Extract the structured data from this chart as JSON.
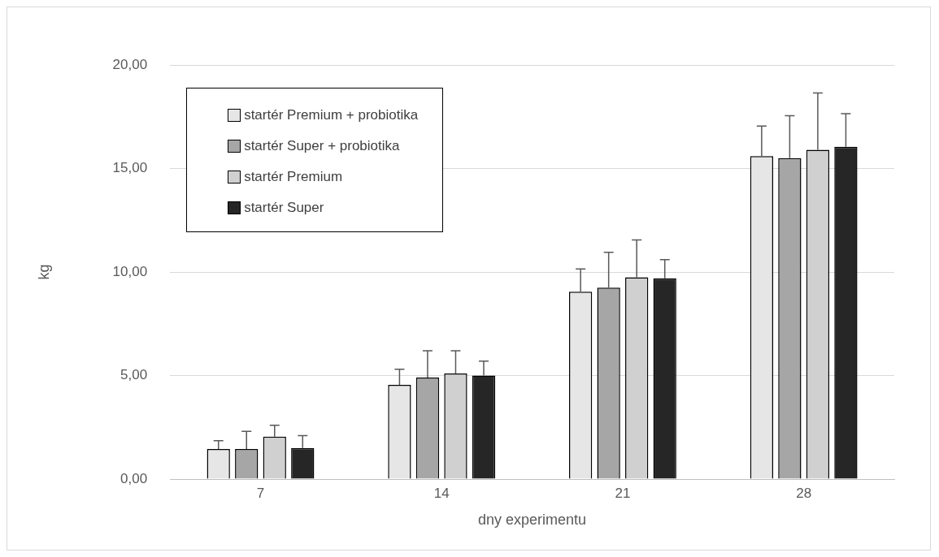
{
  "chart_data": {
    "type": "bar",
    "xlabel": "dny experimentu",
    "ylabel": "kg",
    "categories": [
      "7",
      "14",
      "21",
      "28"
    ],
    "series": [
      {
        "name": "startér Premium + probiotika",
        "color": "#e6e6e6",
        "values": [
          1.45,
          4.55,
          9.05,
          15.6
        ],
        "errors": [
          [
            1.45,
            1.85
          ],
          [
            4.55,
            5.3
          ],
          [
            9.05,
            10.15
          ],
          [
            15.6,
            17.05
          ]
        ]
      },
      {
        "name": "startér Super + probiotika",
        "color": "#a6a6a6",
        "values": [
          1.45,
          4.9,
          9.25,
          15.5
        ],
        "errors": [
          [
            1.45,
            2.3
          ],
          [
            4.9,
            6.2
          ],
          [
            9.25,
            10.95
          ],
          [
            15.5,
            17.55
          ]
        ]
      },
      {
        "name": "startér Premium",
        "color": "#d0d0d0",
        "values": [
          2.05,
          5.1,
          9.75,
          15.9
        ],
        "errors": [
          [
            2.05,
            2.6
          ],
          [
            5.1,
            6.2
          ],
          [
            9.75,
            11.55
          ],
          [
            15.9,
            18.65
          ]
        ]
      },
      {
        "name": "startér Super",
        "color": "#262626",
        "values": [
          1.5,
          5.0,
          9.7,
          16.05
        ],
        "errors": [
          [
            1.5,
            2.1
          ],
          [
            5.0,
            5.7
          ],
          [
            9.7,
            10.6
          ],
          [
            16.05,
            17.65
          ]
        ]
      }
    ],
    "ylim": [
      0,
      20
    ],
    "yticks": [
      {
        "value": 0,
        "label": "0,00"
      },
      {
        "value": 5,
        "label": "5,00"
      },
      {
        "value": 10,
        "label": "10,00"
      },
      {
        "value": 15,
        "label": "15,00"
      },
      {
        "value": 20,
        "label": "20,00"
      }
    ],
    "grid": "y",
    "legend": "top left"
  }
}
